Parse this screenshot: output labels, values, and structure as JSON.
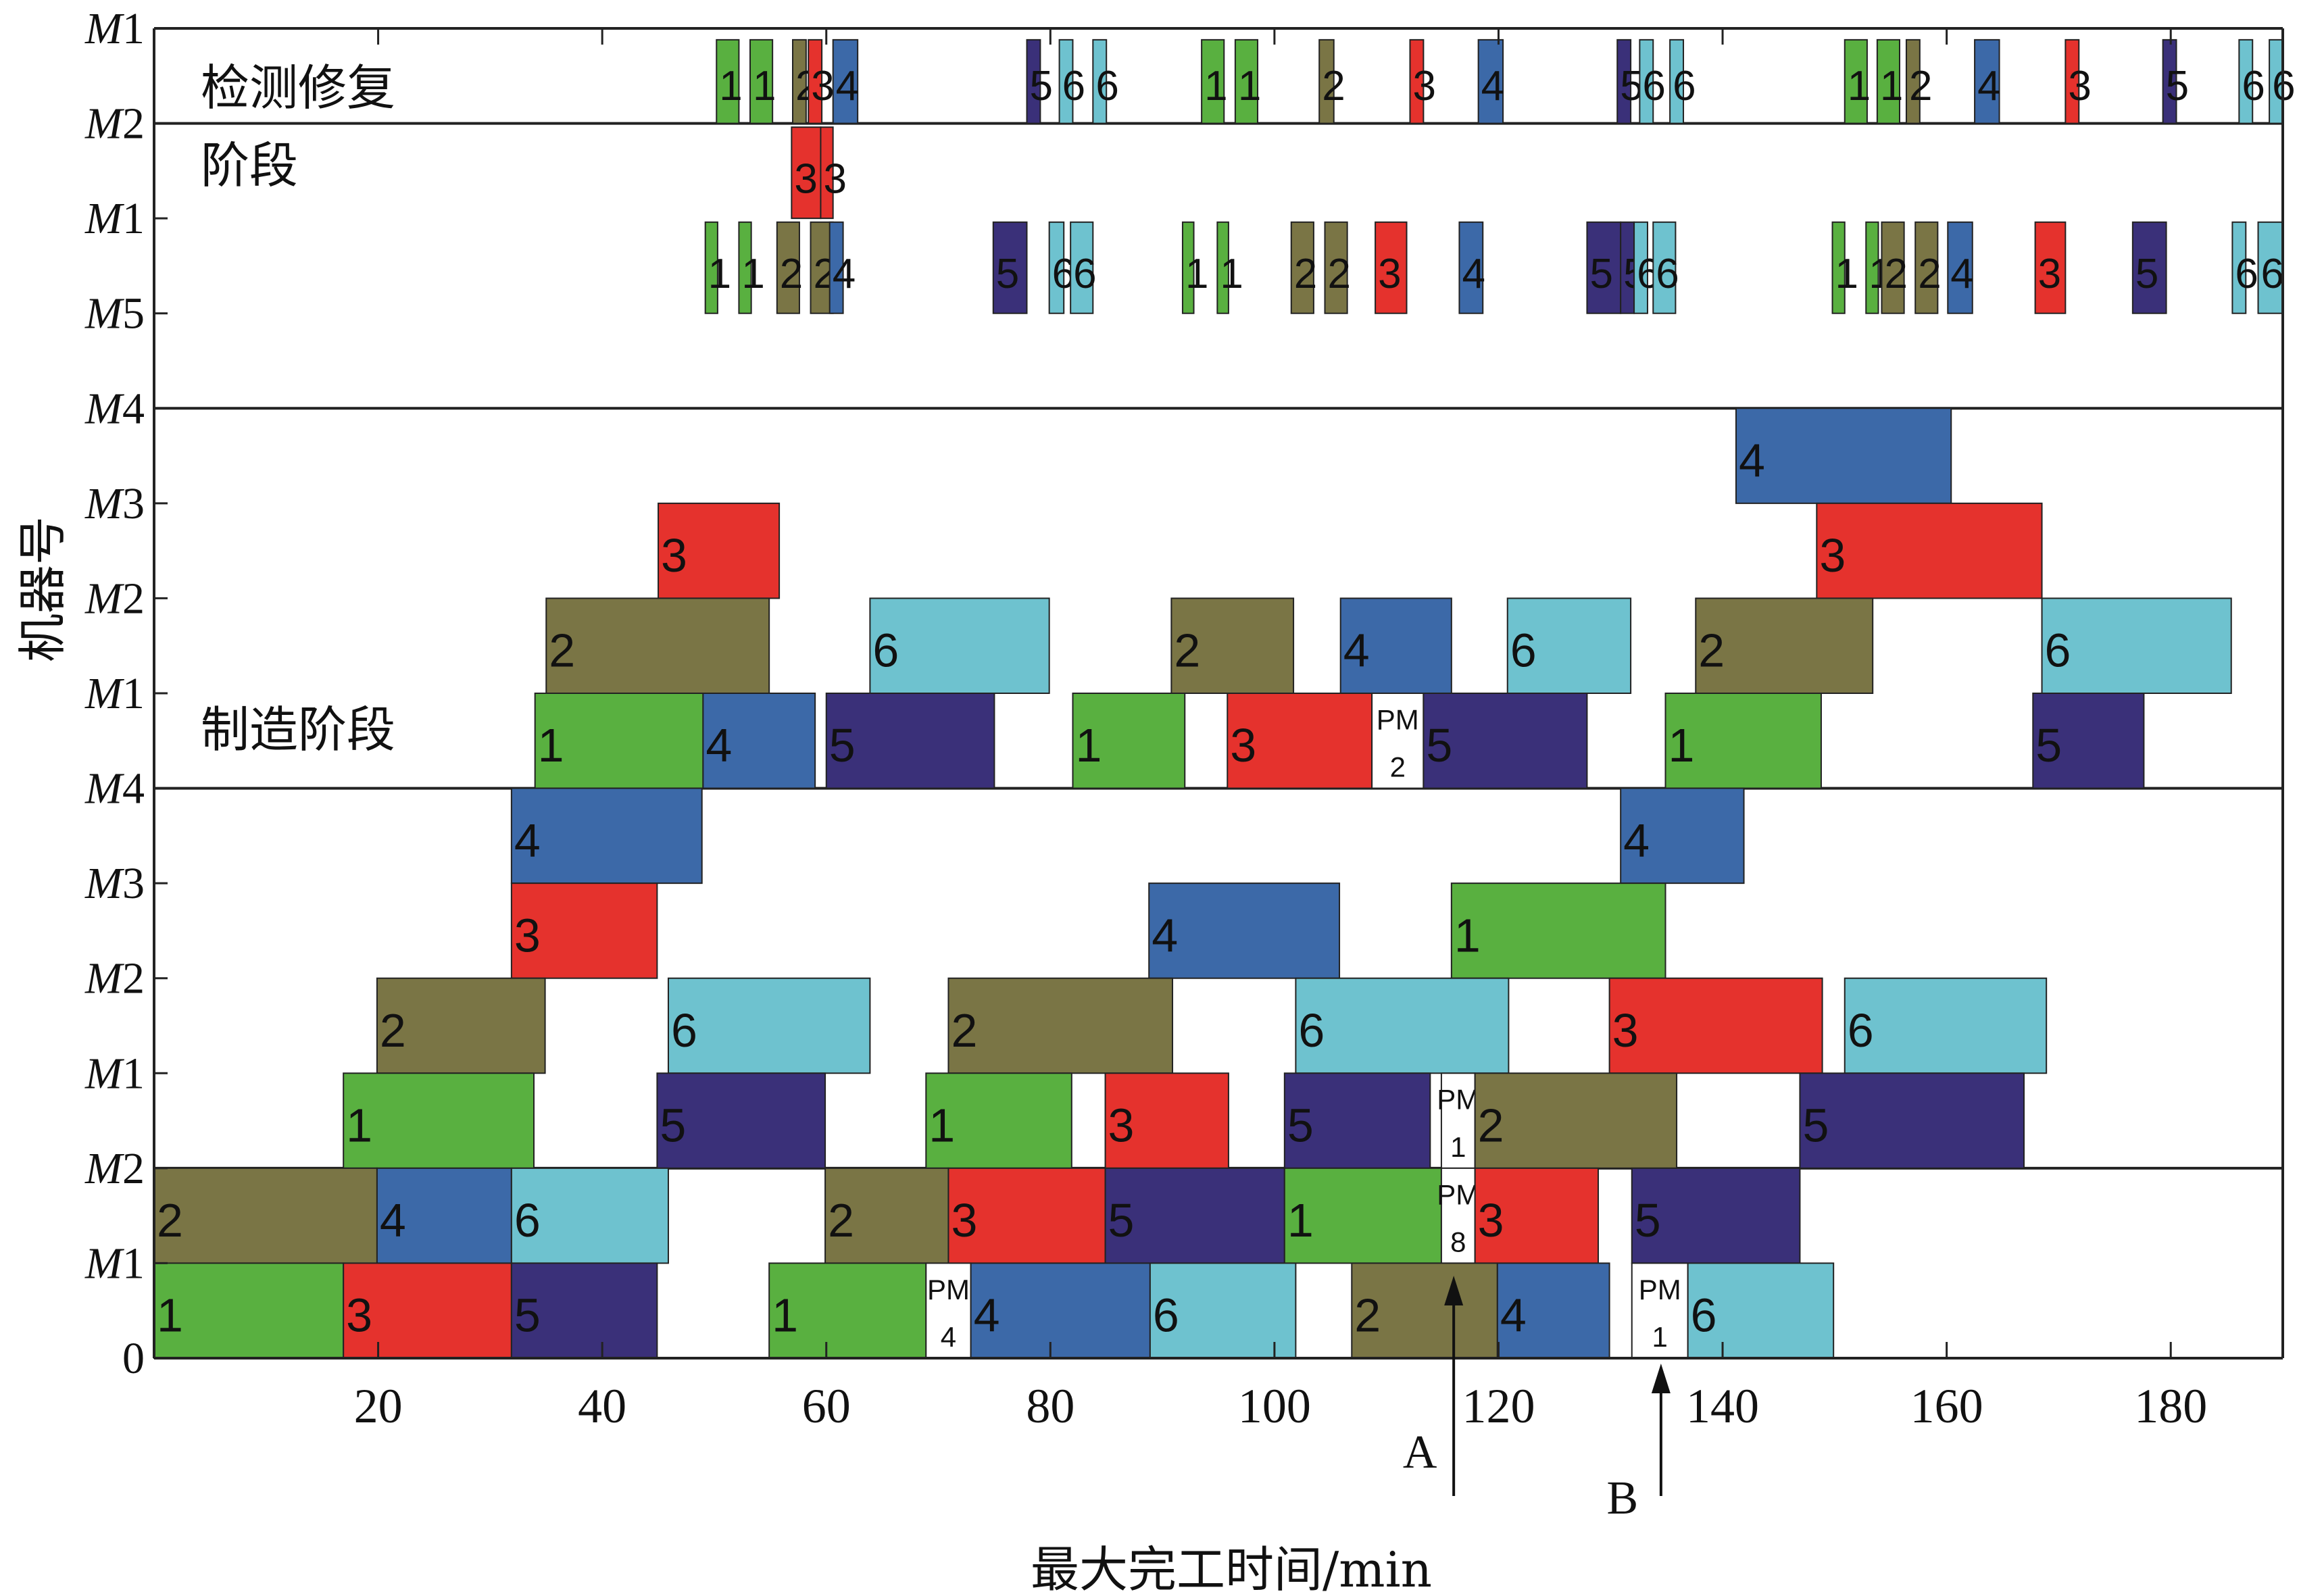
{
  "chart_data": {
    "type": "gantt",
    "xlabel": "最大完工时间/min",
    "ylabel": "机器号",
    "x_ticks": [
      "20",
      "40",
      "60",
      "80",
      "100",
      "120",
      "140",
      "160",
      "180"
    ],
    "xlim": [
      0,
      190
    ],
    "panel_labels": {
      "inspection": [
        "检测修复",
        "阶段"
      ],
      "manufacturing": "制造阶段"
    },
    "y_ticks": [
      {
        "letter": "M",
        "num": "1"
      },
      {
        "letter": "M",
        "num": "2"
      },
      {
        "letter": "M",
        "num": "1"
      },
      {
        "letter": "M",
        "num": "5"
      },
      {
        "letter": "M",
        "num": "4"
      },
      {
        "letter": "M",
        "num": "3"
      },
      {
        "letter": "M",
        "num": "2"
      },
      {
        "letter": "M",
        "num": "1"
      },
      {
        "letter": "M",
        "num": "4"
      },
      {
        "letter": "M",
        "num": "3"
      },
      {
        "letter": "M",
        "num": "2"
      },
      {
        "letter": "M",
        "num": "1"
      },
      {
        "letter": "M",
        "num": "2"
      },
      {
        "letter": "M",
        "num": "1"
      },
      {
        "letter": "",
        "num": "0"
      }
    ],
    "job_colors": {
      "1": "#59b040",
      "2": "#7a7545",
      "3": "#e5322d",
      "4": "#3c69a8",
      "5": "#3a3079",
      "6": "#6ec2cf",
      "PM": "#ffffff"
    },
    "rows": [
      {
        "tasks": [
          {
            "job": "1",
            "start": 50.2,
            "end": 52.2
          },
          {
            "job": "1",
            "start": 53.2,
            "end": 55.2
          },
          {
            "job": "2",
            "start": 57.0,
            "end": 58.2
          },
          {
            "job": "3",
            "start": 58.4,
            "end": 59.6
          },
          {
            "job": "4",
            "start": 60.6,
            "end": 62.8
          },
          {
            "job": "5",
            "start": 77.9,
            "end": 79.1
          },
          {
            "job": "6",
            "start": 80.8,
            "end": 82.0
          },
          {
            "job": "6",
            "start": 83.8,
            "end": 85.0
          },
          {
            "job": "1",
            "start": 93.5,
            "end": 95.5
          },
          {
            "job": "1",
            "start": 96.5,
            "end": 98.5
          },
          {
            "job": "2",
            "start": 104.0,
            "end": 105.3
          },
          {
            "job": "3",
            "start": 112.1,
            "end": 113.3
          },
          {
            "job": "4",
            "start": 118.2,
            "end": 120.4
          },
          {
            "job": "5",
            "start": 130.6,
            "end": 131.8
          },
          {
            "job": "6",
            "start": 132.6,
            "end": 133.8
          },
          {
            "job": "6",
            "start": 135.3,
            "end": 136.5
          },
          {
            "job": "1",
            "start": 150.9,
            "end": 152.9
          },
          {
            "job": "1",
            "start": 153.8,
            "end": 155.8
          },
          {
            "job": "2",
            "start": 156.4,
            "end": 157.6
          },
          {
            "job": "4",
            "start": 162.5,
            "end": 164.7
          },
          {
            "job": "3",
            "start": 170.6,
            "end": 171.8
          },
          {
            "job": "5",
            "start": 179.3,
            "end": 180.5
          },
          {
            "job": "6",
            "start": 186.1,
            "end": 187.3
          },
          {
            "job": "6",
            "start": 188.8,
            "end": 190.0
          }
        ]
      },
      {
        "tasks": [
          {
            "job": "3",
            "start": 56.9,
            "end": 59.5
          },
          {
            "job": "3",
            "start": 59.5,
            "end": 60.6
          }
        ]
      },
      {
        "tasks": [
          {
            "job": "1",
            "start": 49.2,
            "end": 50.3
          },
          {
            "job": "1",
            "start": 52.2,
            "end": 53.3
          },
          {
            "job": "2",
            "start": 55.6,
            "end": 57.6
          },
          {
            "job": "2",
            "start": 58.6,
            "end": 60.6
          },
          {
            "job": "4",
            "start": 60.3,
            "end": 61.5
          },
          {
            "job": "5",
            "start": 74.9,
            "end": 77.9
          },
          {
            "job": "6",
            "start": 79.9,
            "end": 81.2
          },
          {
            "job": "6",
            "start": 81.8,
            "end": 83.8
          },
          {
            "job": "1",
            "start": 91.8,
            "end": 92.8
          },
          {
            "job": "1",
            "start": 94.9,
            "end": 95.9
          },
          {
            "job": "2",
            "start": 101.5,
            "end": 103.5
          },
          {
            "job": "2",
            "start": 104.5,
            "end": 106.5
          },
          {
            "job": "3",
            "start": 109.0,
            "end": 111.8
          },
          {
            "job": "4",
            "start": 116.5,
            "end": 118.6
          },
          {
            "job": "5",
            "start": 127.9,
            "end": 130.9
          },
          {
            "job": "5",
            "start": 130.9,
            "end": 132.1
          },
          {
            "job": "6",
            "start": 132.1,
            "end": 133.3
          },
          {
            "job": "6",
            "start": 133.8,
            "end": 135.8
          },
          {
            "job": "1",
            "start": 149.8,
            "end": 150.9
          },
          {
            "job": "1",
            "start": 152.8,
            "end": 153.9
          },
          {
            "job": "2",
            "start": 154.2,
            "end": 156.2
          },
          {
            "job": "2",
            "start": 157.2,
            "end": 159.2
          },
          {
            "job": "4",
            "start": 160.1,
            "end": 162.3
          },
          {
            "job": "3",
            "start": 167.9,
            "end": 170.6
          },
          {
            "job": "5",
            "start": 176.6,
            "end": 179.6
          },
          {
            "job": "6",
            "start": 185.5,
            "end": 186.7
          },
          {
            "job": "6",
            "start": 187.8,
            "end": 190.0
          }
        ]
      },
      {
        "tasks": []
      },
      {
        "tasks": [
          {
            "job": "4",
            "start": 141.2,
            "end": 160.4
          }
        ]
      },
      {
        "tasks": [
          {
            "job": "3",
            "start": 45.0,
            "end": 55.8
          },
          {
            "job": "3",
            "start": 148.4,
            "end": 168.5
          }
        ]
      },
      {
        "tasks": [
          {
            "job": "2",
            "start": 35.0,
            "end": 54.9
          },
          {
            "job": "6",
            "start": 63.9,
            "end": 79.9
          },
          {
            "job": "2",
            "start": 90.8,
            "end": 101.7
          },
          {
            "job": "4",
            "start": 105.9,
            "end": 115.8
          },
          {
            "job": "6",
            "start": 120.8,
            "end": 131.8
          },
          {
            "job": "2",
            "start": 137.6,
            "end": 153.4
          },
          {
            "job": "6",
            "start": 168.5,
            "end": 185.4
          }
        ]
      },
      {
        "tasks": [
          {
            "job": "1",
            "start": 34.0,
            "end": 49.0
          },
          {
            "job": "4",
            "start": 49.0,
            "end": 59.0
          },
          {
            "job": "5",
            "start": 60.0,
            "end": 75.0
          },
          {
            "job": "1",
            "start": 82.0,
            "end": 92.0
          },
          {
            "job": "3",
            "start": 95.8,
            "end": 108.7
          },
          {
            "job": "PM",
            "start": 108.7,
            "end": 113.3,
            "pm": "2"
          },
          {
            "job": "5",
            "start": 113.3,
            "end": 127.9
          },
          {
            "job": "1",
            "start": 134.9,
            "end": 148.8
          },
          {
            "job": "5",
            "start": 167.7,
            "end": 177.6
          }
        ]
      },
      {
        "tasks": [
          {
            "job": "4",
            "start": 31.9,
            "end": 48.9
          },
          {
            "job": "4",
            "start": 130.9,
            "end": 141.9
          }
        ]
      },
      {
        "tasks": [
          {
            "job": "3",
            "start": 31.9,
            "end": 44.9
          },
          {
            "job": "4",
            "start": 88.8,
            "end": 105.8
          },
          {
            "job": "1",
            "start": 115.8,
            "end": 134.9
          }
        ]
      },
      {
        "tasks": [
          {
            "job": "2",
            "start": 19.9,
            "end": 34.9
          },
          {
            "job": "6",
            "start": 45.9,
            "end": 63.9
          },
          {
            "job": "2",
            "start": 70.9,
            "end": 90.9
          },
          {
            "job": "6",
            "start": 101.9,
            "end": 120.9
          },
          {
            "job": "3",
            "start": 129.9,
            "end": 148.9
          },
          {
            "job": "6",
            "start": 150.9,
            "end": 168.9
          }
        ]
      },
      {
        "tasks": [
          {
            "job": "1",
            "start": 16.9,
            "end": 33.9
          },
          {
            "job": "5",
            "start": 44.9,
            "end": 59.9
          },
          {
            "job": "1",
            "start": 68.9,
            "end": 81.9
          },
          {
            "job": "3",
            "start": 84.9,
            "end": 95.9
          },
          {
            "job": "5",
            "start": 100.9,
            "end": 113.9
          },
          {
            "job": "PM",
            "start": 114.9,
            "end": 117.9,
            "pm": "1"
          },
          {
            "job": "2",
            "start": 117.9,
            "end": 135.9
          },
          {
            "job": "5",
            "start": 146.9,
            "end": 166.9
          }
        ]
      },
      {
        "tasks": [
          {
            "job": "2",
            "start": 0.0,
            "end": 19.9
          },
          {
            "job": "4",
            "start": 19.9,
            "end": 31.9
          },
          {
            "job": "6",
            "start": 31.9,
            "end": 45.9
          },
          {
            "job": "2",
            "start": 59.9,
            "end": 70.9
          },
          {
            "job": "3",
            "start": 70.9,
            "end": 84.9
          },
          {
            "job": "5",
            "start": 84.9,
            "end": 100.9
          },
          {
            "job": "1",
            "start": 100.9,
            "end": 114.9
          },
          {
            "job": "PM",
            "start": 114.9,
            "end": 117.9,
            "pm": "8"
          },
          {
            "job": "3",
            "start": 117.9,
            "end": 128.9
          },
          {
            "job": "5",
            "start": 131.9,
            "end": 146.9
          }
        ]
      },
      {
        "tasks": [
          {
            "job": "1",
            "start": 0.0,
            "end": 16.9
          },
          {
            "job": "3",
            "start": 16.9,
            "end": 31.9
          },
          {
            "job": "5",
            "start": 31.9,
            "end": 44.9
          },
          {
            "job": "1",
            "start": 54.9,
            "end": 68.9
          },
          {
            "job": "PM",
            "start": 68.9,
            "end": 72.9,
            "pm": "4"
          },
          {
            "job": "4",
            "start": 72.9,
            "end": 88.9
          },
          {
            "job": "6",
            "start": 88.9,
            "end": 101.9
          },
          {
            "job": "2",
            "start": 106.9,
            "end": 119.9
          },
          {
            "job": "4",
            "start": 119.9,
            "end": 129.9
          },
          {
            "job": "PM",
            "start": 131.9,
            "end": 136.9,
            "pm": "1"
          },
          {
            "job": "6",
            "start": 136.9,
            "end": 149.9
          }
        ]
      }
    ],
    "annotations": [
      {
        "text": "A",
        "x": 116.0
      },
      {
        "text": "B",
        "x": 134.5
      }
    ]
  }
}
